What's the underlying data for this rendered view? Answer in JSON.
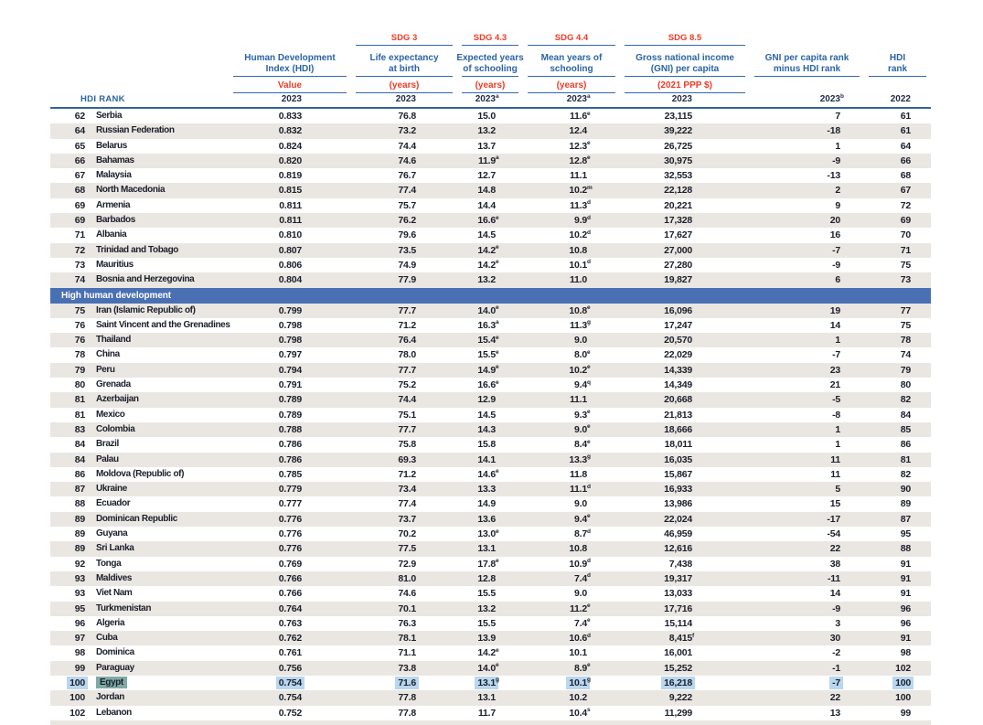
{
  "header": {
    "hdi_rank_label": "HDI RANK",
    "columns": [
      {
        "sdg": "",
        "t1": "Human Development",
        "t2": "Index (HDI)",
        "unit": "Value",
        "year": "2023",
        "year_sup": ""
      },
      {
        "sdg": "SDG 3",
        "t1": "Life expectancy",
        "t2": "at birth",
        "unit": "(years)",
        "year": "2023",
        "year_sup": ""
      },
      {
        "sdg": "SDG 4.3",
        "t1": "Expected years",
        "t2": "of schooling",
        "unit": "(years)",
        "year": "2023",
        "year_sup": "a"
      },
      {
        "sdg": "SDG 4.4",
        "t1": "Mean years of",
        "t2": "schooling",
        "unit": "(years)",
        "year": "2023",
        "year_sup": "a"
      },
      {
        "sdg": "SDG 8.5",
        "t1": "Gross national income",
        "t2": "(GNI) per capita",
        "unit": "(2021 PPP $)",
        "year": "2023",
        "year_sup": ""
      },
      {
        "sdg": "",
        "t1": "GNI per capita rank",
        "t2": "minus HDI rank",
        "unit": "",
        "year": "2023",
        "year_sup": "b"
      },
      {
        "sdg": "",
        "t1": "HDI",
        "t2": "rank",
        "unit": "",
        "year": "2022",
        "year_sup": ""
      }
    ]
  },
  "table": {
    "section_index": 12,
    "section_label": "High human development",
    "rows": [
      {
        "rank": "62",
        "country": "Serbia",
        "hdi": "0.833",
        "le": "76.8",
        "eys": "15.0",
        "eyss": "",
        "mys": "11.6",
        "myss": "e",
        "gni": "23,115",
        "gnis": "",
        "rd": "7",
        "r22": "61",
        "hl": false
      },
      {
        "rank": "64",
        "country": "Russian Federation",
        "hdi": "0.832",
        "le": "73.2",
        "eys": "13.2",
        "eyss": "",
        "mys": "12.4",
        "myss": "",
        "gni": "39,222",
        "gnis": "",
        "rd": "-18",
        "r22": "61",
        "hl": false
      },
      {
        "rank": "65",
        "country": "Belarus",
        "hdi": "0.824",
        "le": "74.4",
        "eys": "13.7",
        "eyss": "",
        "mys": "12.3",
        "myss": "e",
        "gni": "26,725",
        "gnis": "",
        "rd": "1",
        "r22": "64",
        "hl": false
      },
      {
        "rank": "66",
        "country": "Bahamas",
        "hdi": "0.820",
        "le": "74.6",
        "eys": "11.9",
        "eyss": "a",
        "mys": "12.8",
        "myss": "e",
        "gni": "30,975",
        "gnis": "",
        "rd": "-9",
        "r22": "66",
        "hl": false
      },
      {
        "rank": "67",
        "country": "Malaysia",
        "hdi": "0.819",
        "le": "76.7",
        "eys": "12.7",
        "eyss": "",
        "mys": "11.1",
        "myss": "",
        "gni": "32,553",
        "gnis": "",
        "rd": "-13",
        "r22": "68",
        "hl": false
      },
      {
        "rank": "68",
        "country": "North Macedonia",
        "hdi": "0.815",
        "le": "77.4",
        "eys": "14.8",
        "eyss": "",
        "mys": "10.2",
        "myss": "m",
        "gni": "22,128",
        "gnis": "",
        "rd": "2",
        "r22": "67",
        "hl": false
      },
      {
        "rank": "69",
        "country": "Armenia",
        "hdi": "0.811",
        "le": "75.7",
        "eys": "14.4",
        "eyss": "",
        "mys": "11.3",
        "myss": "d",
        "gni": "20,221",
        "gnis": "",
        "rd": "9",
        "r22": "72",
        "hl": false
      },
      {
        "rank": "69",
        "country": "Barbados",
        "hdi": "0.811",
        "le": "76.2",
        "eys": "16.6",
        "eyss": "e",
        "mys": "9.9",
        "myss": "d",
        "gni": "17,328",
        "gnis": "",
        "rd": "20",
        "r22": "69",
        "hl": false
      },
      {
        "rank": "71",
        "country": "Albania",
        "hdi": "0.810",
        "le": "79.6",
        "eys": "14.5",
        "eyss": "",
        "mys": "10.2",
        "myss": "d",
        "gni": "17,627",
        "gnis": "",
        "rd": "16",
        "r22": "70",
        "hl": false
      },
      {
        "rank": "72",
        "country": "Trinidad and Tobago",
        "hdi": "0.807",
        "le": "73.5",
        "eys": "14.2",
        "eyss": "e",
        "mys": "10.8",
        "myss": "",
        "gni": "27,000",
        "gnis": "",
        "rd": "-7",
        "r22": "71",
        "hl": false
      },
      {
        "rank": "73",
        "country": "Mauritius",
        "hdi": "0.806",
        "le": "74.9",
        "eys": "14.2",
        "eyss": "e",
        "mys": "10.1",
        "myss": "d",
        "gni": "27,280",
        "gnis": "",
        "rd": "-9",
        "r22": "75",
        "hl": false
      },
      {
        "rank": "74",
        "country": "Bosnia and Herzegovina",
        "hdi": "0.804",
        "le": "77.9",
        "eys": "13.2",
        "eyss": "",
        "mys": "11.0",
        "myss": "",
        "gni": "19,827",
        "gnis": "",
        "rd": "6",
        "r22": "73",
        "hl": false
      },
      {
        "rank": "75",
        "country": "Iran (Islamic Republic of)",
        "hdi": "0.799",
        "le": "77.7",
        "eys": "14.0",
        "eyss": "e",
        "mys": "10.8",
        "myss": "e",
        "gni": "16,096",
        "gnis": "",
        "rd": "19",
        "r22": "77",
        "hl": false
      },
      {
        "rank": "76",
        "country": "Saint Vincent and the Grenadines",
        "hdi": "0.798",
        "le": "71.2",
        "eys": "16.3",
        "eyss": "a",
        "mys": "11.3",
        "myss": "g",
        "gni": "17,247",
        "gnis": "",
        "rd": "14",
        "r22": "75",
        "hl": false
      },
      {
        "rank": "76",
        "country": "Thailand",
        "hdi": "0.798",
        "le": "76.4",
        "eys": "15.4",
        "eyss": "e",
        "mys": "9.0",
        "myss": "",
        "gni": "20,570",
        "gnis": "",
        "rd": "1",
        "r22": "78",
        "hl": false
      },
      {
        "rank": "78",
        "country": "China",
        "hdi": "0.797",
        "le": "78.0",
        "eys": "15.5",
        "eyss": "e",
        "mys": "8.0",
        "myss": "e",
        "gni": "22,029",
        "gnis": "",
        "rd": "-7",
        "r22": "74",
        "hl": false
      },
      {
        "rank": "79",
        "country": "Peru",
        "hdi": "0.794",
        "le": "77.7",
        "eys": "14.9",
        "eyss": "e",
        "mys": "10.2",
        "myss": "e",
        "gni": "14,339",
        "gnis": "",
        "rd": "23",
        "r22": "79",
        "hl": false
      },
      {
        "rank": "80",
        "country": "Grenada",
        "hdi": "0.791",
        "le": "75.2",
        "eys": "16.6",
        "eyss": "e",
        "mys": "9.4",
        "myss": "q",
        "gni": "14,349",
        "gnis": "",
        "rd": "21",
        "r22": "80",
        "hl": false
      },
      {
        "rank": "81",
        "country": "Azerbaijan",
        "hdi": "0.789",
        "le": "74.4",
        "eys": "12.9",
        "eyss": "",
        "mys": "11.1",
        "myss": "",
        "gni": "20,668",
        "gnis": "",
        "rd": "-5",
        "r22": "82",
        "hl": false
      },
      {
        "rank": "81",
        "country": "Mexico",
        "hdi": "0.789",
        "le": "75.1",
        "eys": "14.5",
        "eyss": "",
        "mys": "9.3",
        "myss": "e",
        "gni": "21,813",
        "gnis": "",
        "rd": "-8",
        "r22": "84",
        "hl": false
      },
      {
        "rank": "83",
        "country": "Colombia",
        "hdi": "0.788",
        "le": "77.7",
        "eys": "14.3",
        "eyss": "",
        "mys": "9.0",
        "myss": "e",
        "gni": "18,666",
        "gnis": "",
        "rd": "1",
        "r22": "85",
        "hl": false
      },
      {
        "rank": "84",
        "country": "Brazil",
        "hdi": "0.786",
        "le": "75.8",
        "eys": "15.8",
        "eyss": "",
        "mys": "8.4",
        "myss": "e",
        "gni": "18,011",
        "gnis": "",
        "rd": "1",
        "r22": "86",
        "hl": false
      },
      {
        "rank": "84",
        "country": "Palau",
        "hdi": "0.786",
        "le": "69.3",
        "eys": "14.1",
        "eyss": "",
        "mys": "13.3",
        "myss": "g",
        "gni": "16,035",
        "gnis": "",
        "rd": "11",
        "r22": "81",
        "hl": false
      },
      {
        "rank": "86",
        "country": "Moldova (Republic of)",
        "hdi": "0.785",
        "le": "71.2",
        "eys": "14.6",
        "eyss": "e",
        "mys": "11.8",
        "myss": "",
        "gni": "15,867",
        "gnis": "",
        "rd": "11",
        "r22": "82",
        "hl": false
      },
      {
        "rank": "87",
        "country": "Ukraine",
        "hdi": "0.779",
        "le": "73.4",
        "eys": "13.3",
        "eyss": "",
        "mys": "11.1",
        "myss": "d",
        "gni": "16,933",
        "gnis": "",
        "rd": "5",
        "r22": "90",
        "hl": false
      },
      {
        "rank": "88",
        "country": "Ecuador",
        "hdi": "0.777",
        "le": "77.4",
        "eys": "14.9",
        "eyss": "",
        "mys": "9.0",
        "myss": "",
        "gni": "13,986",
        "gnis": "",
        "rd": "15",
        "r22": "89",
        "hl": false
      },
      {
        "rank": "89",
        "country": "Dominican Republic",
        "hdi": "0.776",
        "le": "73.7",
        "eys": "13.6",
        "eyss": "",
        "mys": "9.4",
        "myss": "e",
        "gni": "22,024",
        "gnis": "",
        "rd": "-17",
        "r22": "87",
        "hl": false
      },
      {
        "rank": "89",
        "country": "Guyana",
        "hdi": "0.776",
        "le": "70.2",
        "eys": "13.0",
        "eyss": "e",
        "mys": "8.7",
        "myss": "d",
        "gni": "46,959",
        "gnis": "",
        "rd": "-54",
        "r22": "95",
        "hl": false
      },
      {
        "rank": "89",
        "country": "Sri Lanka",
        "hdi": "0.776",
        "le": "77.5",
        "eys": "13.1",
        "eyss": "",
        "mys": "10.8",
        "myss": "",
        "gni": "12,616",
        "gnis": "",
        "rd": "22",
        "r22": "88",
        "hl": false
      },
      {
        "rank": "92",
        "country": "Tonga",
        "hdi": "0.769",
        "le": "72.9",
        "eys": "17.8",
        "eyss": "e",
        "mys": "10.9",
        "myss": "d",
        "gni": "7,438",
        "gnis": "",
        "rd": "38",
        "r22": "91",
        "hl": false
      },
      {
        "rank": "93",
        "country": "Maldives",
        "hdi": "0.766",
        "le": "81.0",
        "eys": "12.8",
        "eyss": "",
        "mys": "7.4",
        "myss": "d",
        "gni": "19,317",
        "gnis": "",
        "rd": "-11",
        "r22": "91",
        "hl": false
      },
      {
        "rank": "93",
        "country": "Viet Nam",
        "hdi": "0.766",
        "le": "74.6",
        "eys": "15.5",
        "eyss": "",
        "mys": "9.0",
        "myss": "",
        "gni": "13,033",
        "gnis": "",
        "rd": "14",
        "r22": "91",
        "hl": false
      },
      {
        "rank": "95",
        "country": "Turkmenistan",
        "hdi": "0.764",
        "le": "70.1",
        "eys": "13.2",
        "eyss": "",
        "mys": "11.2",
        "myss": "e",
        "gni": "17,716",
        "gnis": "",
        "rd": "-9",
        "r22": "96",
        "hl": false
      },
      {
        "rank": "96",
        "country": "Algeria",
        "hdi": "0.763",
        "le": "76.3",
        "eys": "15.5",
        "eyss": "",
        "mys": "7.4",
        "myss": "e",
        "gni": "15,114",
        "gnis": "",
        "rd": "3",
        "r22": "96",
        "hl": false
      },
      {
        "rank": "97",
        "country": "Cuba",
        "hdi": "0.762",
        "le": "78.1",
        "eys": "13.9",
        "eyss": "",
        "mys": "10.6",
        "myss": "d",
        "gni": "8,415",
        "gnis": "f",
        "rd": "30",
        "r22": "91",
        "hl": false
      },
      {
        "rank": "98",
        "country": "Dominica",
        "hdi": "0.761",
        "le": "71.1",
        "eys": "14.2",
        "eyss": "e",
        "mys": "10.1",
        "myss": "",
        "gni": "16,001",
        "gnis": "",
        "rd": "-2",
        "r22": "98",
        "hl": false
      },
      {
        "rank": "99",
        "country": "Paraguay",
        "hdi": "0.756",
        "le": "73.8",
        "eys": "14.0",
        "eyss": "e",
        "mys": "8.9",
        "myss": "e",
        "gni": "15,252",
        "gnis": "",
        "rd": "-1",
        "r22": "102",
        "hl": false
      },
      {
        "rank": "100",
        "country": "Egypt",
        "hdi": "0.754",
        "le": "71.6",
        "eys": "13.1",
        "eyss": "g",
        "mys": "10.1",
        "myss": "g",
        "gni": "16,218",
        "gnis": "",
        "rd": "-7",
        "r22": "100",
        "hl": true
      },
      {
        "rank": "100",
        "country": "Jordan",
        "hdi": "0.754",
        "le": "77.8",
        "eys": "13.1",
        "eyss": "",
        "mys": "10.2",
        "myss": "",
        "gni": "9,222",
        "gnis": "",
        "rd": "22",
        "r22": "100",
        "hl": false
      },
      {
        "rank": "102",
        "country": "Lebanon",
        "hdi": "0.752",
        "le": "77.8",
        "eys": "11.7",
        "eyss": "",
        "mys": "10.4",
        "myss": "s",
        "gni": "11,299",
        "gnis": "",
        "rd": "13",
        "r22": "99",
        "hl": false
      }
    ]
  },
  "colors": {
    "header_blue": "#2a63a5",
    "accent_red": "#ee3a26",
    "row_stripe_gray": "#eae7e2",
    "section_band_blue": "#4a70b4",
    "highlight_light_blue": "#b9d7ee",
    "highlight_teal": "#7faaa6",
    "text_navy": "#1b1f2b"
  }
}
